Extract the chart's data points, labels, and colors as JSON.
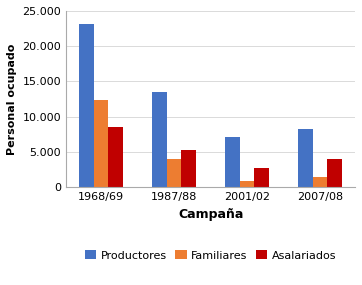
{
  "categories": [
    "1968/69",
    "1987/88",
    "2001/02",
    "2007/08"
  ],
  "series": {
    "Productores": [
      23200,
      13500,
      7100,
      8200
    ],
    "Familiares": [
      12400,
      4000,
      900,
      1400
    ],
    "Asalariados": [
      8600,
      5300,
      2700,
      4000
    ]
  },
  "colors": {
    "Productores": "#4472C4",
    "Familiares": "#ED7D31",
    "Asalariados": "#C00000"
  },
  "ylabel": "Personal ocupado",
  "xlabel": "Campaña",
  "ylim": [
    0,
    25000
  ],
  "yticks": [
    0,
    5000,
    10000,
    15000,
    20000,
    25000
  ],
  "ytick_labels": [
    "0",
    "5.000",
    "10.000",
    "15.000",
    "20.000",
    "25.000"
  ],
  "background_color": "#FFFFFF",
  "plot_bg_color": "#FFFFFF",
  "figsize": [
    3.62,
    2.85
  ],
  "dpi": 100
}
